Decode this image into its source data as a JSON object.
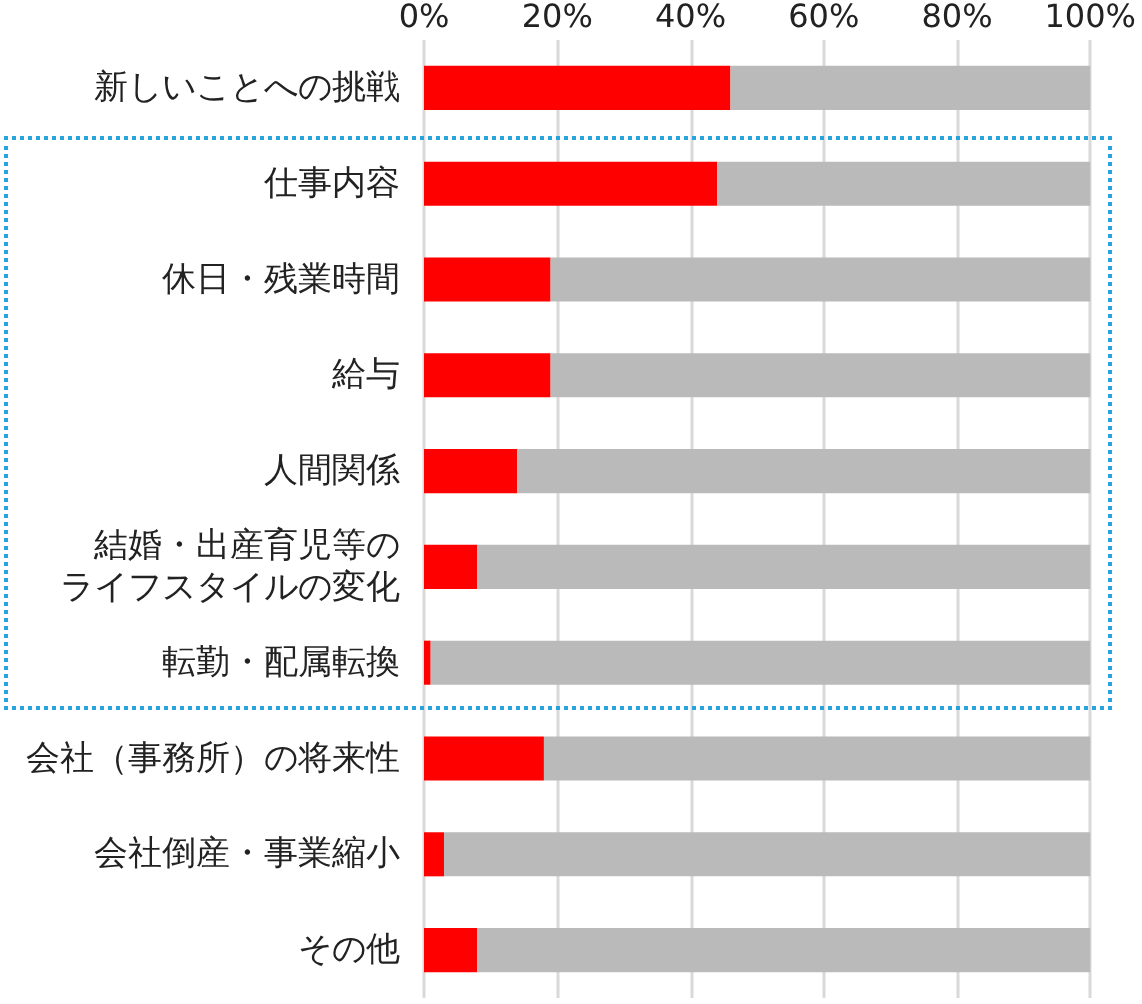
{
  "chart_data": {
    "type": "bar",
    "orientation": "horizontal",
    "stacked": true,
    "categories": [
      "新しいことへの挑戦",
      "仕事内容",
      "休日・残業時間",
      "給与",
      "人間関係",
      "結婚・出産育児等のライフスタイルの変化",
      "転勤・配属転換",
      "会社（事務所）の将来性",
      "会社倒産・事業縮小",
      "その他"
    ],
    "series": [
      {
        "color": "#ff0000",
        "values": [
          46,
          44,
          19,
          19,
          14,
          8,
          1,
          18,
          3,
          8
        ]
      },
      {
        "color": "#bababa",
        "values": [
          54,
          56,
          81,
          81,
          86,
          92,
          99,
          82,
          97,
          92
        ]
      }
    ],
    "xlim": [
      0,
      100
    ],
    "xticks": [
      {
        "value": 0,
        "label": "0%"
      },
      {
        "value": 20,
        "label": "20%"
      },
      {
        "value": 40,
        "label": "40%"
      },
      {
        "value": 60,
        "label": "60%"
      },
      {
        "value": 80,
        "label": "80%"
      },
      {
        "value": 100,
        "label": "100%"
      }
    ],
    "grid": "x"
  }
}
